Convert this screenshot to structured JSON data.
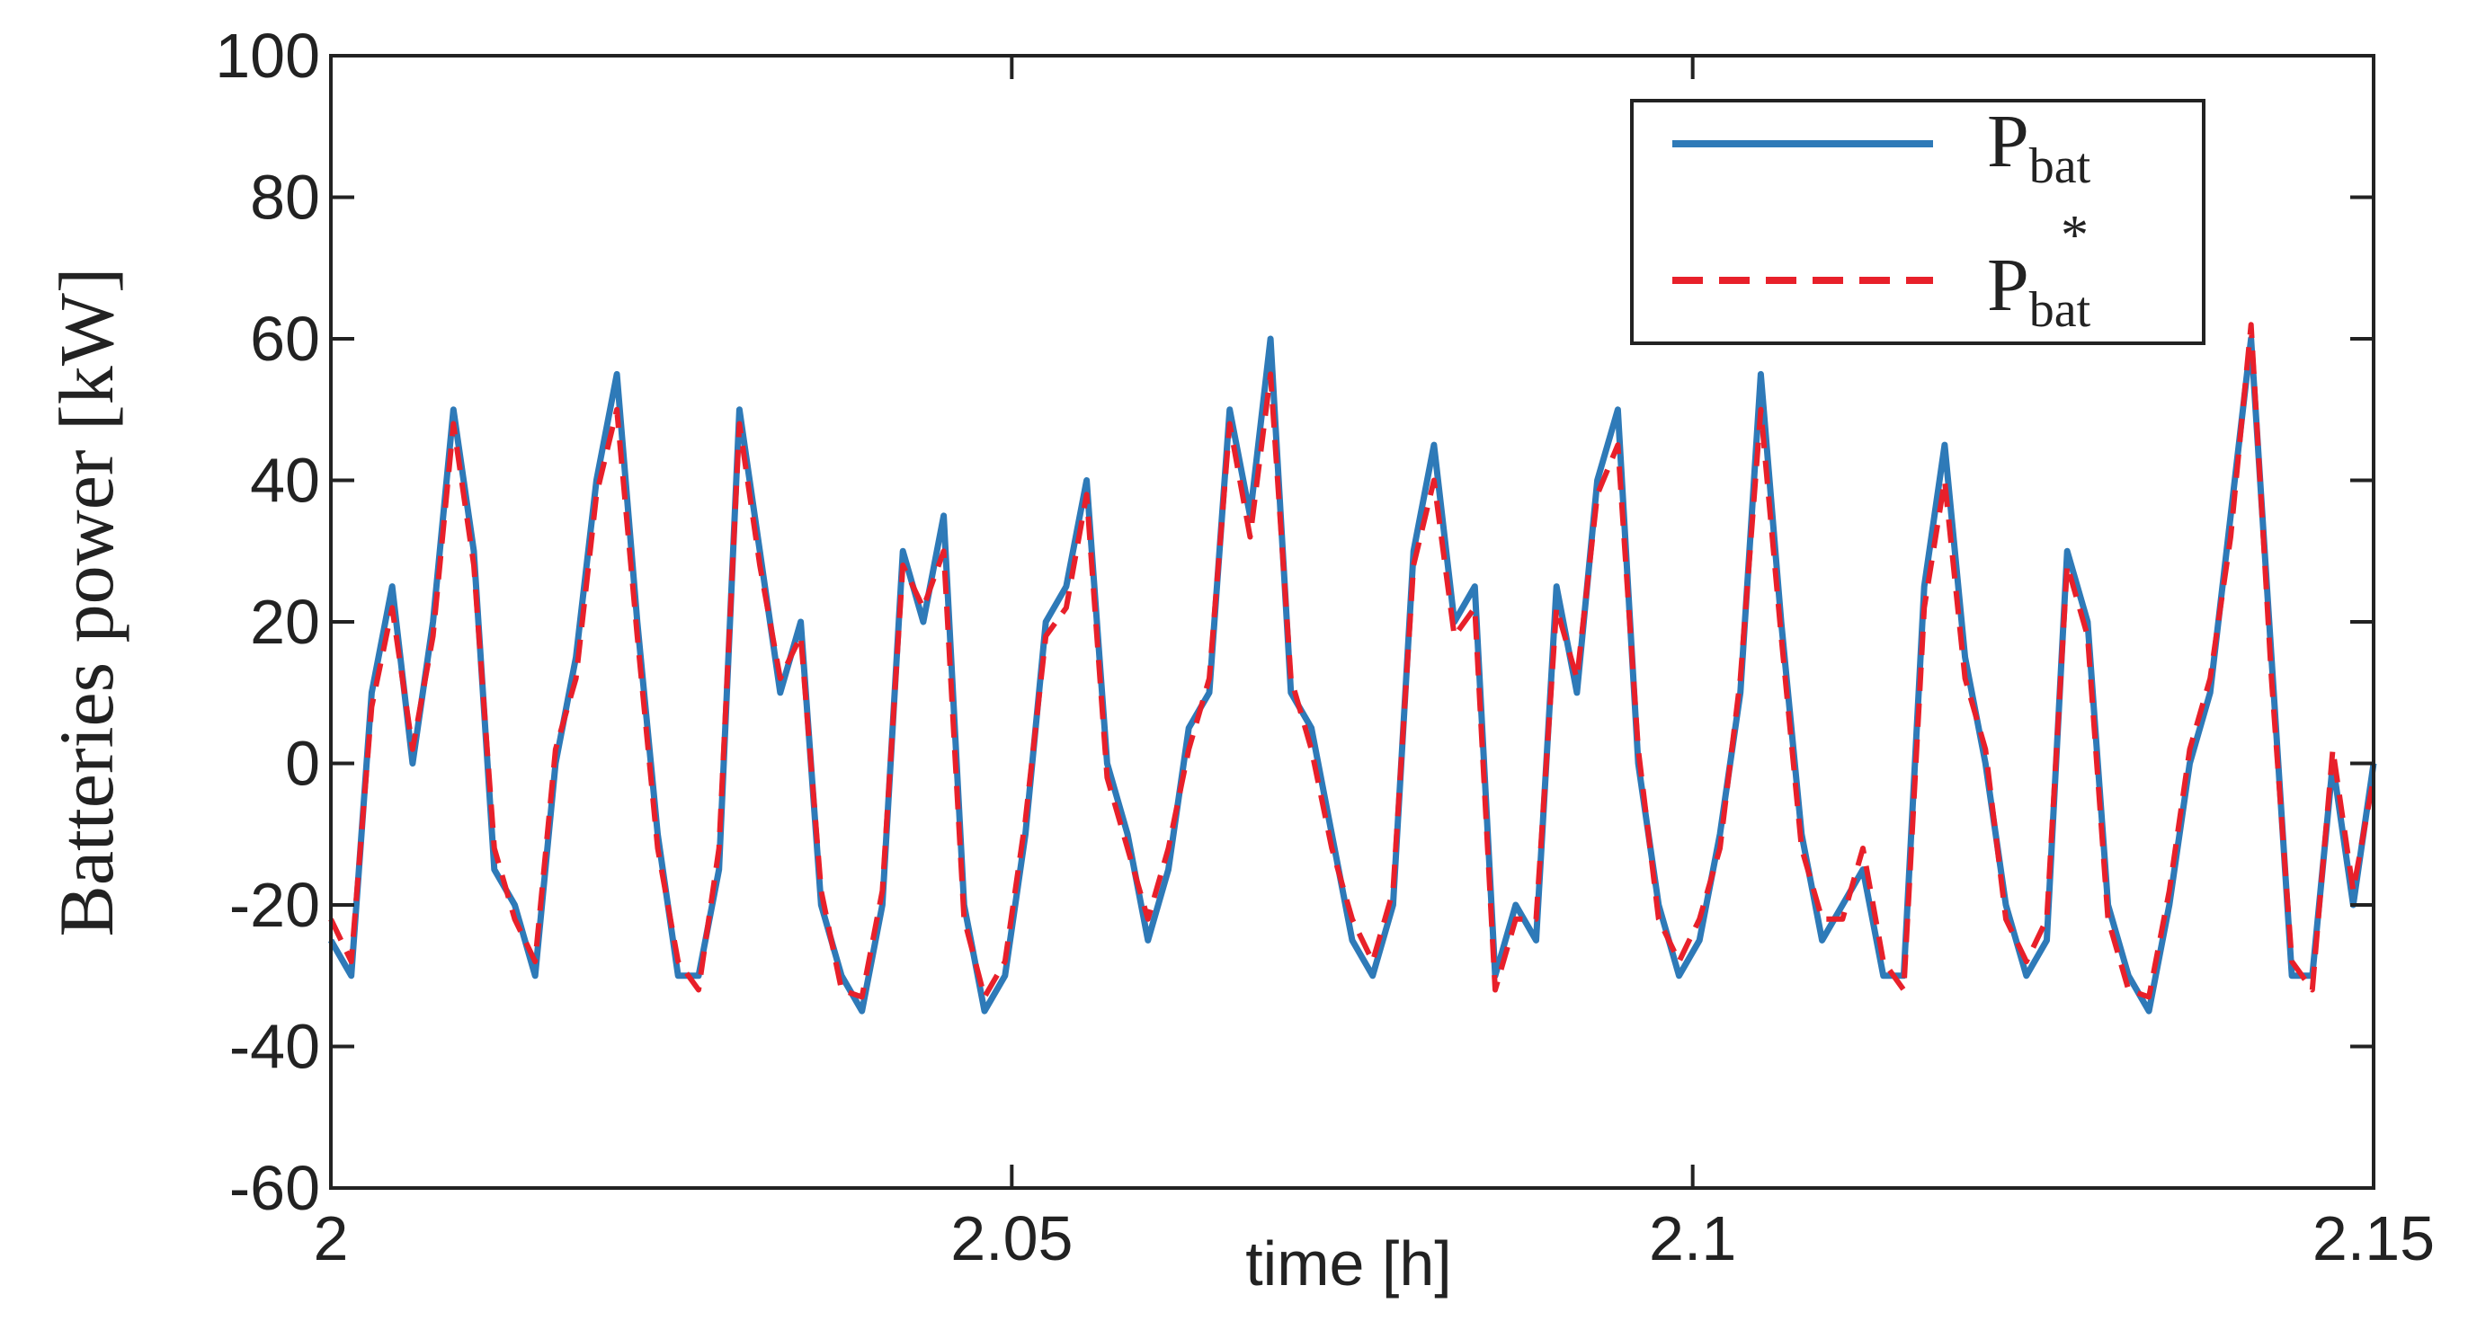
{
  "chart_data": {
    "type": "line",
    "title": "",
    "xlabel": "time [h]",
    "ylabel": "Batteries power [kW]",
    "xlim": [
      2,
      2.15
    ],
    "ylim": [
      -60,
      100
    ],
    "x_ticks": [
      2,
      2.05,
      2.1,
      2.15
    ],
    "x_tick_labels": [
      "2",
      "2.05",
      "2.1",
      "2.15"
    ],
    "y_ticks": [
      -60,
      -40,
      -20,
      0,
      20,
      40,
      60,
      80,
      100
    ],
    "y_tick_labels": [
      "-60",
      "-40",
      "-20",
      "0",
      "20",
      "40",
      "60",
      "80",
      "100"
    ],
    "grid": false,
    "legend_position": "top-right",
    "legend": [
      {
        "symbol": "P",
        "sub": "bat",
        "sup": ""
      },
      {
        "symbol": "P",
        "sub": "bat",
        "sup": "*"
      }
    ],
    "series": [
      {
        "name": "P_bat",
        "color": "#2e7ab8",
        "style": "solid",
        "x": [
          2.0,
          2.0015,
          2.003,
          2.0045,
          2.006,
          2.0075,
          2.009,
          2.0105,
          2.012,
          2.0135,
          2.015,
          2.0165,
          2.018,
          2.0195,
          2.021,
          2.0225,
          2.024,
          2.0255,
          2.027,
          2.0285,
          2.03,
          2.0315,
          2.033,
          2.0345,
          2.036,
          2.0375,
          2.039,
          2.0405,
          2.042,
          2.0435,
          2.045,
          2.0465,
          2.048,
          2.0495,
          2.051,
          2.0525,
          2.054,
          2.0555,
          2.057,
          2.0585,
          2.06,
          2.0615,
          2.063,
          2.0645,
          2.066,
          2.0675,
          2.069,
          2.0705,
          2.072,
          2.0735,
          2.075,
          2.0765,
          2.078,
          2.0795,
          2.081,
          2.0825,
          2.084,
          2.0855,
          2.087,
          2.0885,
          2.09,
          2.0915,
          2.093,
          2.0945,
          2.096,
          2.0975,
          2.099,
          2.1005,
          2.102,
          2.1035,
          2.105,
          2.1065,
          2.108,
          2.1095,
          2.111,
          2.1125,
          2.114,
          2.1155,
          2.117,
          2.1185,
          2.12,
          2.1215,
          2.123,
          2.1245,
          2.126,
          2.1275,
          2.129,
          2.1305,
          2.132,
          2.1335,
          2.135,
          2.1365,
          2.138,
          2.1395,
          2.141,
          2.1425,
          2.144,
          2.1455,
          2.147,
          2.1485,
          2.15
        ],
        "values": [
          -25,
          -30,
          10,
          25,
          0,
          20,
          50,
          30,
          -15,
          -20,
          -30,
          0,
          15,
          40,
          55,
          20,
          -10,
          -30,
          -30,
          -15,
          50,
          30,
          10,
          20,
          -20,
          -30,
          -35,
          -20,
          30,
          20,
          35,
          -20,
          -35,
          -30,
          -10,
          20,
          25,
          40,
          0,
          -10,
          -25,
          -15,
          5,
          10,
          50,
          35,
          60,
          10,
          5,
          -10,
          -25,
          -30,
          -20,
          30,
          45,
          20,
          25,
          -30,
          -20,
          -25,
          25,
          10,
          40,
          50,
          0,
          -20,
          -30,
          -25,
          -10,
          10,
          55,
          20,
          -10,
          -25,
          -20,
          -15,
          -30,
          -30,
          25,
          45,
          15,
          0,
          -20,
          -30,
          -25,
          30,
          20,
          -20,
          -30,
          -35,
          -20,
          0,
          10,
          35,
          60,
          15,
          -30,
          -30,
          0,
          -20,
          0
        ]
      },
      {
        "name": "P*_bat",
        "color": "#e8202a",
        "style": "dashed",
        "x": [
          2.0,
          2.0015,
          2.003,
          2.0045,
          2.006,
          2.0075,
          2.009,
          2.0105,
          2.012,
          2.0135,
          2.015,
          2.0165,
          2.018,
          2.0195,
          2.021,
          2.0225,
          2.024,
          2.0255,
          2.027,
          2.0285,
          2.03,
          2.0315,
          2.033,
          2.0345,
          2.036,
          2.0375,
          2.039,
          2.0405,
          2.042,
          2.0435,
          2.045,
          2.0465,
          2.048,
          2.0495,
          2.051,
          2.0525,
          2.054,
          2.0555,
          2.057,
          2.0585,
          2.06,
          2.0615,
          2.063,
          2.0645,
          2.066,
          2.0675,
          2.069,
          2.0705,
          2.072,
          2.0735,
          2.075,
          2.0765,
          2.078,
          2.0795,
          2.081,
          2.0825,
          2.084,
          2.0855,
          2.087,
          2.0885,
          2.09,
          2.0915,
          2.093,
          2.0945,
          2.096,
          2.0975,
          2.099,
          2.1005,
          2.102,
          2.1035,
          2.105,
          2.1065,
          2.108,
          2.1095,
          2.111,
          2.1125,
          2.114,
          2.1155,
          2.117,
          2.1185,
          2.12,
          2.1215,
          2.123,
          2.1245,
          2.126,
          2.1275,
          2.129,
          2.1305,
          2.132,
          2.1335,
          2.135,
          2.1365,
          2.138,
          2.1395,
          2.141,
          2.1425,
          2.144,
          2.1455,
          2.147,
          2.1485,
          2.15
        ],
        "values": [
          -22,
          -28,
          8,
          22,
          2,
          18,
          48,
          28,
          -12,
          -22,
          -28,
          2,
          12,
          38,
          50,
          18,
          -12,
          -28,
          -32,
          -12,
          48,
          28,
          12,
          18,
          -18,
          -32,
          -33,
          -18,
          28,
          22,
          30,
          -22,
          -33,
          -28,
          -8,
          18,
          22,
          38,
          -2,
          -12,
          -22,
          -12,
          2,
          12,
          48,
          32,
          55,
          12,
          2,
          -12,
          -22,
          -28,
          -18,
          28,
          40,
          18,
          22,
          -32,
          -22,
          -22,
          22,
          12,
          38,
          45,
          2,
          -22,
          -28,
          -22,
          -12,
          12,
          50,
          18,
          -12,
          -22,
          -22,
          -12,
          -28,
          -32,
          22,
          40,
          12,
          2,
          -22,
          -28,
          -22,
          28,
          18,
          -22,
          -32,
          -33,
          -18,
          2,
          12,
          32,
          62,
          12,
          -28,
          -32,
          2,
          -18,
          -2
        ]
      }
    ]
  }
}
